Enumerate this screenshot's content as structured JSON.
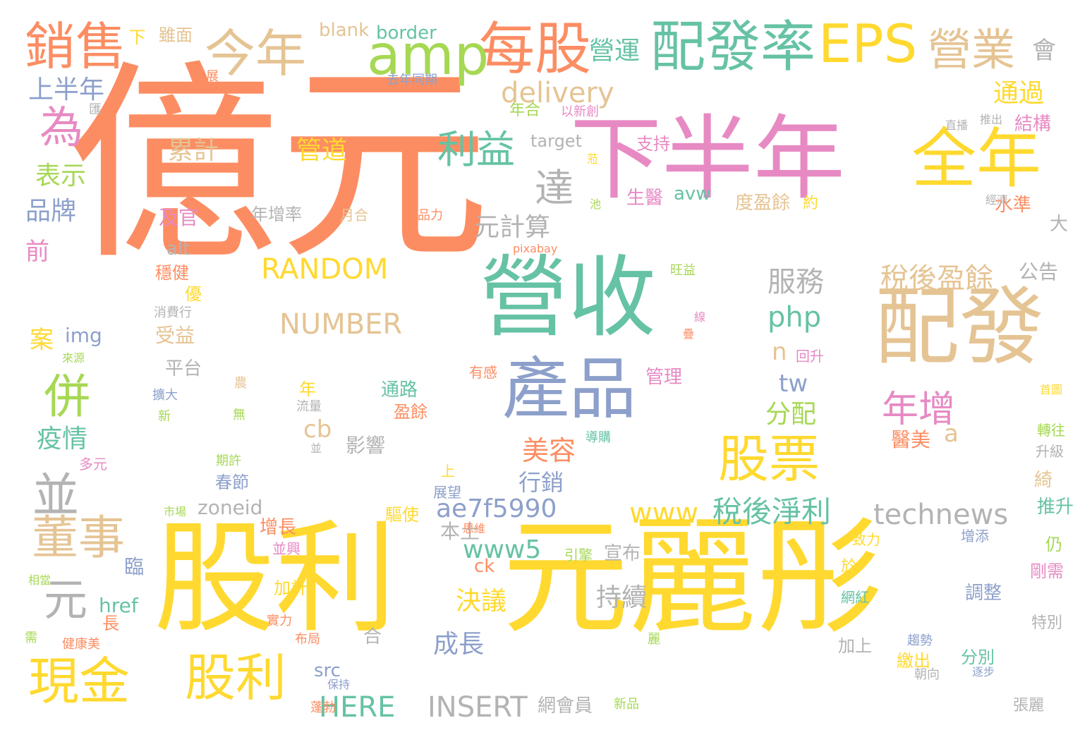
{
  "palette": {
    "orange": "#fc8d62",
    "yellow": "#ffd92f",
    "green": "#66c2a5",
    "pink": "#e78ac3",
    "blue": "#8da0cb",
    "lime": "#a6d854",
    "tan": "#e5c494",
    "gray": "#b3b3b3"
  },
  "words": [
    {
      "text": "億元",
      "color": "orange",
      "weight": 1.0
    },
    {
      "text": "股利",
      "color": "yellow",
      "weight": 0.42
    },
    {
      "text": "元麗彤",
      "color": "yellow",
      "weight": 0.45
    },
    {
      "text": "下半年",
      "color": "pink",
      "weight": 0.32
    },
    {
      "text": "營收",
      "color": "green",
      "weight": 0.3
    },
    {
      "text": "配發",
      "color": "tan",
      "weight": 0.28
    },
    {
      "text": "全年",
      "color": "yellow",
      "weight": 0.22
    },
    {
      "text": "產品",
      "color": "blue",
      "weight": 0.2
    },
    {
      "text": "每股",
      "color": "orange",
      "weight": 0.16
    },
    {
      "text": "amp",
      "color": "lime",
      "weight": 0.15
    },
    {
      "text": "配發率",
      "color": "green",
      "weight": 0.16
    },
    {
      "text": "EPS",
      "color": "yellow",
      "weight": 0.15
    },
    {
      "text": "今年",
      "color": "tan",
      "weight": 0.13
    },
    {
      "text": "銷售",
      "color": "orange",
      "weight": 0.13
    },
    {
      "text": "營業",
      "color": "tan",
      "weight": 0.12
    },
    {
      "text": "股票",
      "color": "yellow",
      "weight": 0.14
    },
    {
      "text": "現金",
      "color": "yellow",
      "weight": 0.14
    },
    {
      "text": "股利",
      "color": "yellow",
      "weight": 0.14
    },
    {
      "text": "董事",
      "color": "tan",
      "weight": 0.12
    },
    {
      "text": "併",
      "color": "lime",
      "weight": 0.12
    },
    {
      "text": "並",
      "color": "gray",
      "weight": 0.12
    },
    {
      "text": "為",
      "color": "pink",
      "weight": 0.11
    },
    {
      "text": "元",
      "color": "gray",
      "weight": 0.11
    },
    {
      "text": "達",
      "color": "gray",
      "weight": 0.11
    },
    {
      "text": "利益",
      "color": "green",
      "weight": 0.1
    },
    {
      "text": "年增",
      "color": "pink",
      "weight": 0.1
    },
    {
      "text": "稅後淨利",
      "color": "green",
      "weight": 0.09
    },
    {
      "text": "稅後盈餘",
      "color": "tan",
      "weight": 0.08
    },
    {
      "text": "RANDOM",
      "color": "yellow",
      "weight": 0.08
    },
    {
      "text": "NUMBER",
      "color": "tan",
      "weight": 0.08
    },
    {
      "text": "INSERT",
      "color": "gray",
      "weight": 0.08
    },
    {
      "text": "HERE",
      "color": "green",
      "weight": 0.08
    },
    {
      "text": "www",
      "color": "yellow",
      "weight": 0.08
    },
    {
      "text": "technews",
      "color": "gray",
      "weight": 0.08
    },
    {
      "text": "delivery",
      "color": "tan",
      "weight": 0.08
    },
    {
      "text": "ae7f5990",
      "color": "blue",
      "weight": 0.07
    },
    {
      "text": "php",
      "color": "green",
      "weight": 0.07
    },
    {
      "text": "www5",
      "color": "green",
      "weight": 0.07
    },
    {
      "text": "服務",
      "color": "gray",
      "weight": 0.08
    },
    {
      "text": "元計算",
      "color": "gray",
      "weight": 0.07
    },
    {
      "text": "美容",
      "color": "orange",
      "weight": 0.07
    },
    {
      "text": "營運",
      "color": "green",
      "weight": 0.07
    },
    {
      "text": "通過",
      "color": "yellow",
      "weight": 0.07
    },
    {
      "text": "上半年",
      "color": "blue",
      "weight": 0.07
    },
    {
      "text": "表示",
      "color": "lime",
      "weight": 0.07
    },
    {
      "text": "品牌",
      "color": "blue",
      "weight": 0.07
    },
    {
      "text": "疫情",
      "color": "green",
      "weight": 0.07
    },
    {
      "text": "累計",
      "color": "tan",
      "weight": 0.07
    },
    {
      "text": "管道",
      "color": "yellow",
      "weight": 0.07
    },
    {
      "text": "會",
      "color": "gray",
      "weight": 0.06
    },
    {
      "text": "分配",
      "color": "lime",
      "weight": 0.07
    },
    {
      "text": "成長",
      "color": "blue",
      "weight": 0.07
    },
    {
      "text": "決議",
      "color": "yellow",
      "weight": 0.07
    },
    {
      "text": "持續",
      "color": "gray",
      "weight": 0.07
    },
    {
      "text": "行銷",
      "color": "blue",
      "weight": 0.06
    },
    {
      "text": "tw",
      "color": "blue",
      "weight": 0.06
    },
    {
      "text": "n",
      "color": "tan",
      "weight": 0.06
    },
    {
      "text": "a",
      "color": "tan",
      "weight": 0.06
    },
    {
      "text": "cb",
      "color": "tan",
      "weight": 0.06
    },
    {
      "text": "前",
      "color": "pink",
      "weight": 0.06
    },
    {
      "text": "案",
      "color": "yellow",
      "weight": 0.06
    },
    {
      "text": "blank",
      "color": "tan",
      "weight": 0.05
    },
    {
      "text": "border",
      "color": "green",
      "weight": 0.05
    },
    {
      "text": "下",
      "color": "yellow",
      "weight": 0.05
    },
    {
      "text": "雖面",
      "color": "tan",
      "weight": 0.04
    },
    {
      "text": "結構",
      "color": "pink",
      "weight": 0.05
    },
    {
      "text": "target",
      "color": "gray",
      "weight": 0.05
    },
    {
      "text": "支持",
      "color": "pink",
      "weight": 0.05
    },
    {
      "text": "年合",
      "color": "lime",
      "weight": 0.04
    },
    {
      "text": "avw",
      "color": "green",
      "weight": 0.05
    },
    {
      "text": "生醫",
      "color": "pink",
      "weight": 0.05
    },
    {
      "text": "度盈餘",
      "color": "tan",
      "weight": 0.05
    },
    {
      "text": "約",
      "color": "yellow",
      "weight": 0.04
    },
    {
      "text": "水準",
      "color": "orange",
      "weight": 0.04
    },
    {
      "text": "及官",
      "color": "pink",
      "weight": 0.05
    },
    {
      "text": "年增率",
      "color": "gray",
      "weight": 0.04
    },
    {
      "text": "月合",
      "color": "tan",
      "weight": 0.03
    },
    {
      "text": "產品力",
      "color": "orange",
      "weight": 0.03
    },
    {
      "text": "alt",
      "color": "gray",
      "weight": 0.05
    },
    {
      "text": "大",
      "color": "gray",
      "weight": 0.04
    },
    {
      "text": "pixabay",
      "color": "orange",
      "weight": 0.03
    },
    {
      "text": "公告",
      "color": "gray",
      "weight": 0.05
    },
    {
      "text": "穩健",
      "color": "orange",
      "weight": 0.04
    },
    {
      "text": "旺益",
      "color": "lime",
      "weight": 0.03
    },
    {
      "text": "優",
      "color": "yellow",
      "weight": 0.04
    },
    {
      "text": "消費行",
      "color": "gray",
      "weight": 0.03
    },
    {
      "text": "受益",
      "color": "tan",
      "weight": 0.05
    },
    {
      "text": "img",
      "color": "blue",
      "weight": 0.05
    },
    {
      "text": "平台",
      "color": "gray",
      "weight": 0.05
    },
    {
      "text": "有感",
      "color": "orange",
      "weight": 0.03
    },
    {
      "text": "管理",
      "color": "pink",
      "weight": 0.05
    },
    {
      "text": "回升",
      "color": "pink",
      "weight": 0.03
    },
    {
      "text": "來源",
      "color": "lime",
      "weight": 0.03
    },
    {
      "text": "擴大",
      "color": "blue",
      "weight": 0.03
    },
    {
      "text": "新",
      "color": "lime",
      "weight": 0.03
    },
    {
      "text": "年",
      "color": "yellow",
      "weight": 0.04
    },
    {
      "text": "通路",
      "color": "green",
      "weight": 0.05
    },
    {
      "text": "盈餘",
      "color": "orange",
      "weight": 0.04
    },
    {
      "text": "流量",
      "color": "gray",
      "weight": 0.03
    },
    {
      "text": "無",
      "color": "lime",
      "weight": 0.03
    },
    {
      "text": "影響",
      "color": "gray",
      "weight": 0.05
    },
    {
      "text": "醫美",
      "color": "orange",
      "weight": 0.05
    },
    {
      "text": "導購",
      "color": "green",
      "weight": 0.03
    },
    {
      "text": "轉往",
      "color": "lime",
      "weight": 0.03
    },
    {
      "text": "升級",
      "color": "gray",
      "weight": 0.03
    },
    {
      "text": "首圖",
      "color": "yellow",
      "weight": 0.03
    },
    {
      "text": "多元",
      "color": "pink",
      "weight": 0.03
    },
    {
      "text": "期許",
      "color": "lime",
      "weight": 0.03
    },
    {
      "text": "春節",
      "color": "blue",
      "weight": 0.04
    },
    {
      "text": "上",
      "color": "yellow",
      "weight": 0.03
    },
    {
      "text": "展望",
      "color": "blue",
      "weight": 0.03
    },
    {
      "text": "zoneid",
      "color": "gray",
      "weight": 0.05
    },
    {
      "text": "驅使",
      "color": "yellow",
      "weight": 0.04
    },
    {
      "text": "本土",
      "color": "gray",
      "weight": 0.05
    },
    {
      "text": "思維",
      "color": "orange",
      "weight": 0.03
    },
    {
      "text": "推升",
      "color": "green",
      "weight": 0.04
    },
    {
      "text": "綺",
      "color": "tan",
      "weight": 0.04
    },
    {
      "text": "市場",
      "color": "lime",
      "weight": 0.03
    },
    {
      "text": "增長",
      "color": "orange",
      "weight": 0.04
    },
    {
      "text": "並興",
      "color": "pink",
      "weight": 0.03
    },
    {
      "text": "臨",
      "color": "blue",
      "weight": 0.04
    },
    {
      "text": "ck",
      "color": "orange",
      "weight": 0.05
    },
    {
      "text": "引擎",
      "color": "lime",
      "weight": 0.03
    },
    {
      "text": "宣布",
      "color": "gray",
      "weight": 0.05
    },
    {
      "text": "致力",
      "color": "yellow",
      "weight": 0.03
    },
    {
      "text": "增添",
      "color": "blue",
      "weight": 0.03
    },
    {
      "text": "仍",
      "color": "lime",
      "weight": 0.04
    },
    {
      "text": "剛需",
      "color": "pink",
      "weight": 0.04
    },
    {
      "text": "相當",
      "color": "lime",
      "weight": 0.03
    },
    {
      "text": "加計",
      "color": "yellow",
      "weight": 0.04
    },
    {
      "text": "於",
      "color": "yellow",
      "weight": 0.04
    },
    {
      "text": "調整",
      "color": "blue",
      "weight": 0.04
    },
    {
      "text": "網紅",
      "color": "green",
      "weight": 0.03
    },
    {
      "text": "href",
      "color": "green",
      "weight": 0.05
    },
    {
      "text": "長",
      "color": "orange",
      "weight": 0.04
    },
    {
      "text": "實力",
      "color": "orange",
      "weight": 0.03
    },
    {
      "text": "特別",
      "color": "gray",
      "weight": 0.04
    },
    {
      "text": "需",
      "color": "lime",
      "weight": 0.03
    },
    {
      "text": "健康美",
      "color": "orange",
      "weight": 0.03
    },
    {
      "text": "麗",
      "color": "lime",
      "weight": 0.03
    },
    {
      "text": "趨勢",
      "color": "blue",
      "weight": 0.03
    },
    {
      "text": "布局",
      "color": "orange",
      "weight": 0.03
    },
    {
      "text": "合",
      "color": "gray",
      "weight": 0.04
    },
    {
      "text": "加上",
      "color": "gray",
      "weight": 0.04
    },
    {
      "text": "繳出",
      "color": "yellow",
      "weight": 0.04
    },
    {
      "text": "分別",
      "color": "green",
      "weight": 0.04
    },
    {
      "text": "逐步",
      "color": "blue",
      "weight": 0.03
    },
    {
      "text": "src",
      "color": "blue",
      "weight": 0.05
    },
    {
      "text": "保持",
      "color": "blue",
      "weight": 0.03
    },
    {
      "text": "朝向",
      "color": "gray",
      "weight": 0.03
    },
    {
      "text": "網會員",
      "color": "gray",
      "weight": 0.04
    },
    {
      "text": "新品",
      "color": "lime",
      "weight": 0.03
    },
    {
      "text": "張麗",
      "color": "gray",
      "weight": 0.03
    },
    {
      "text": "發展",
      "color": "orange",
      "weight": 0.03
    },
    {
      "text": "去年同期",
      "color": "blue",
      "weight": 0.03
    },
    {
      "text": "匯",
      "color": "gray",
      "weight": 0.03
    },
    {
      "text": "以新創",
      "color": "pink",
      "weight": 0.03
    },
    {
      "text": "直播",
      "color": "gray",
      "weight": 0.03
    },
    {
      "text": "推出",
      "color": "gray",
      "weight": 0.03
    },
    {
      "text": "蒞",
      "color": "yellow",
      "weight": 0.03
    },
    {
      "text": "池",
      "color": "lime",
      "weight": 0.03
    },
    {
      "text": "經濟",
      "color": "gray",
      "weight": 0.03
    },
    {
      "text": "線",
      "color": "pink",
      "weight": 0.03
    },
    {
      "text": "疊",
      "color": "orange",
      "weight": 0.03
    },
    {
      "text": "農",
      "color": "tan",
      "weight": 0.03
    },
    {
      "text": "並",
      "color": "gray",
      "weight": 0.03
    },
    {
      "text": "蓬勃",
      "color": "orange",
      "weight": 0.03
    }
  ]
}
